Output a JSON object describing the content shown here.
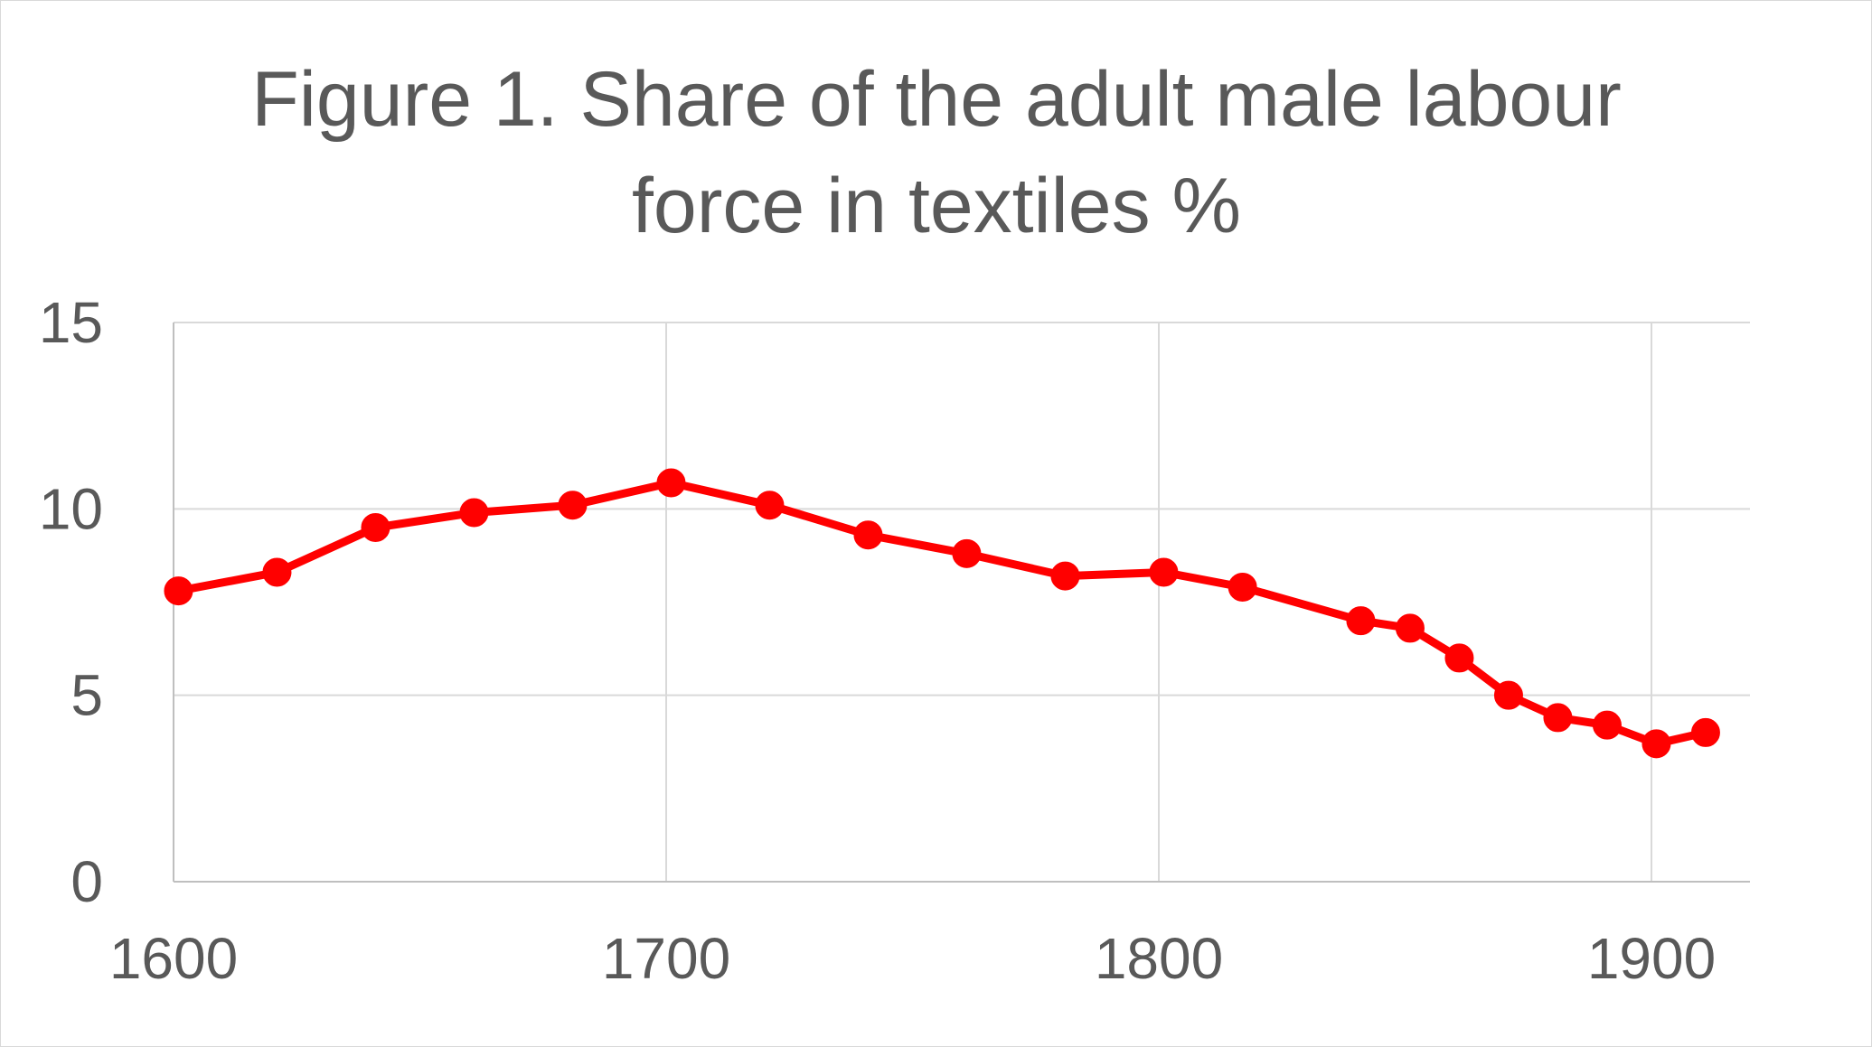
{
  "chart_data": {
    "type": "scatter",
    "mode": "lines+markers",
    "title": "Figure 1. Share of the adult male labour force in textiles %",
    "xlabel": "",
    "ylabel": "",
    "xlim": [
      1600,
      1920
    ],
    "ylim": [
      0,
      15
    ],
    "x_ticks": [
      1600,
      1700,
      1800,
      1900
    ],
    "y_ticks": [
      0,
      5,
      10,
      15
    ],
    "grid": true,
    "legend": "none",
    "series": [
      {
        "color": "#ff0000",
        "points": [
          {
            "x": 1601,
            "y": 7.8
          },
          {
            "x": 1621,
            "y": 8.3
          },
          {
            "x": 1641,
            "y": 9.5
          },
          {
            "x": 1661,
            "y": 9.9
          },
          {
            "x": 1681,
            "y": 10.1
          },
          {
            "x": 1701,
            "y": 10.7
          },
          {
            "x": 1721,
            "y": 10.1
          },
          {
            "x": 1741,
            "y": 9.3
          },
          {
            "x": 1761,
            "y": 8.8
          },
          {
            "x": 1781,
            "y": 8.2
          },
          {
            "x": 1801,
            "y": 8.3
          },
          {
            "x": 1817,
            "y": 7.9
          },
          {
            "x": 1841,
            "y": 7.0
          },
          {
            "x": 1851,
            "y": 6.8
          },
          {
            "x": 1861,
            "y": 6.0
          },
          {
            "x": 1871,
            "y": 5.0
          },
          {
            "x": 1881,
            "y": 4.4
          },
          {
            "x": 1891,
            "y": 4.2
          },
          {
            "x": 1901,
            "y": 3.7
          },
          {
            "x": 1911,
            "y": 4.0
          }
        ]
      }
    ]
  }
}
